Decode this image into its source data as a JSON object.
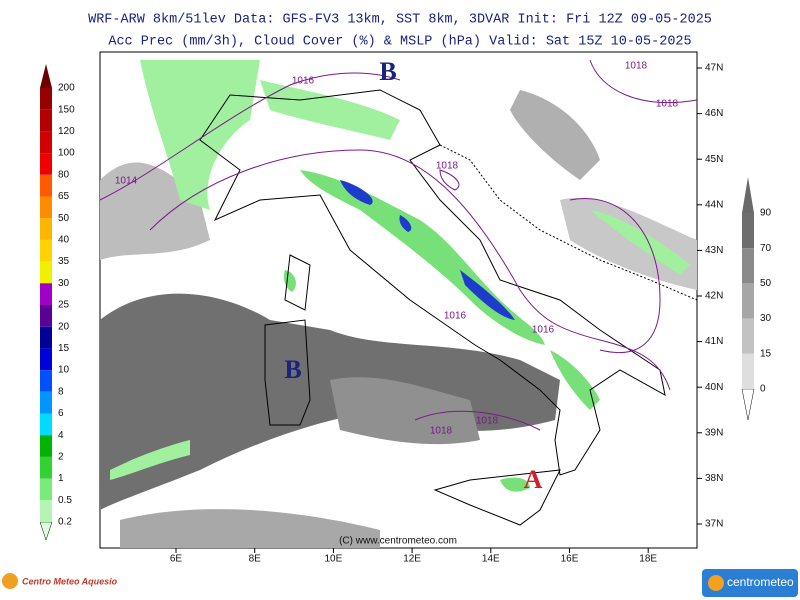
{
  "header": {
    "line1": "WRF-ARW 8km/51lev  Data: GFS-FV3 13km, SST 8km, 3DVAR  Init: Fri 12Z 09-05-2025",
    "line2": "Acc Prec (mm/3h), Cloud Cover (%) & MSLP (hPa)  Valid: Sat 15Z 10-05-2025"
  },
  "precip_legend": [
    "200",
    "150",
    "120",
    "100",
    "80",
    "65",
    "50",
    "40",
    "35",
    "30",
    "25",
    "20",
    "15",
    "10",
    "8",
    "6",
    "4",
    "2",
    "1",
    "0.5",
    "0.2"
  ],
  "cloud_legend": [
    "90",
    "70",
    "50",
    "30",
    "15",
    "0"
  ],
  "lat_labels": [
    "47N",
    "46N",
    "45N",
    "44N",
    "43N",
    "42N",
    "41N",
    "40N",
    "39N",
    "38N",
    "37N"
  ],
  "lon_labels": [
    "6E",
    "8E",
    "10E",
    "12E",
    "14E",
    "16E",
    "18E"
  ],
  "isobars": [
    "1016",
    "1018",
    "1018",
    "1014",
    "1018",
    "1016",
    "1016",
    "1018",
    "1018"
  ],
  "centers": [
    "B",
    "B",
    "A"
  ],
  "watermark": "(C) www.centrometeo.com",
  "footer": {
    "left_logo": "Centro Meteo Aquesio",
    "right_logo": "centrometeo"
  }
}
